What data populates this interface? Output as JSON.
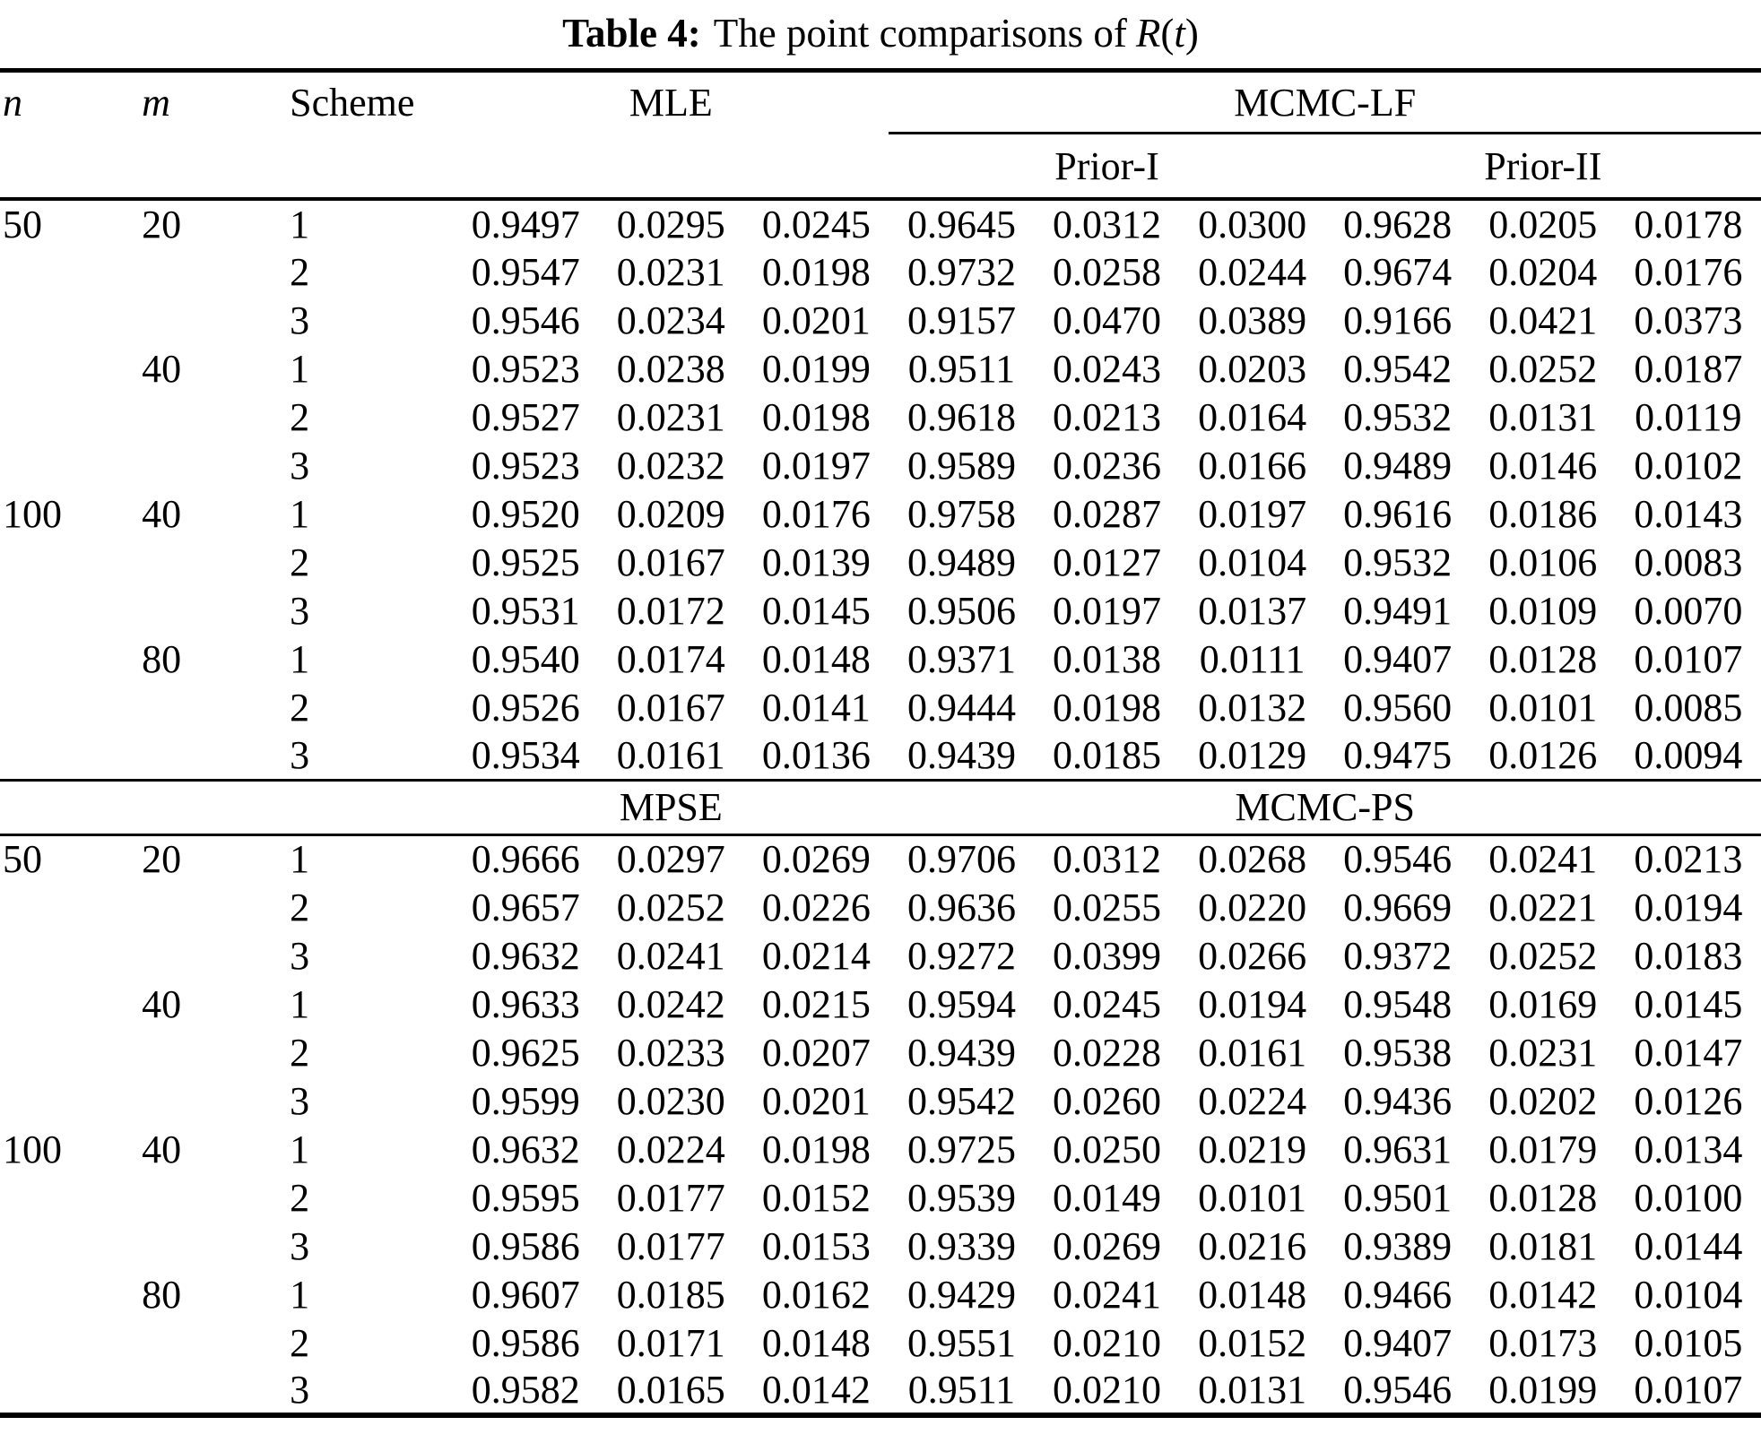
{
  "title": {
    "label": "Table 4:",
    "text": "The point comparisons of",
    "r": "R",
    "open": "(",
    "t": "t",
    "close": ")"
  },
  "colors": {
    "text": "#000000",
    "background": "#ffffff"
  },
  "columns": {
    "n": "n",
    "m": "m",
    "scheme": "Scheme"
  },
  "sections": [
    {
      "left": "MLE",
      "right": "MCMC-LF",
      "priors": [
        "Prior-I",
        "Prior-II"
      ],
      "rows": [
        {
          "n": "50",
          "m": "20",
          "scheme": "1",
          "values": [
            "0.9497",
            "0.0295",
            "0.0245",
            "0.9645",
            "0.0312",
            "0.0300",
            "0.9628",
            "0.0205",
            "0.0178"
          ]
        },
        {
          "n": "",
          "m": "",
          "scheme": "2",
          "values": [
            "0.9547",
            "0.0231",
            "0.0198",
            "0.9732",
            "0.0258",
            "0.0244",
            "0.9674",
            "0.0204",
            "0.0176"
          ]
        },
        {
          "n": "",
          "m": "",
          "scheme": "3",
          "values": [
            "0.9546",
            "0.0234",
            "0.0201",
            "0.9157",
            "0.0470",
            "0.0389",
            "0.9166",
            "0.0421",
            "0.0373"
          ]
        },
        {
          "n": "",
          "m": "40",
          "scheme": "1",
          "values": [
            "0.9523",
            "0.0238",
            "0.0199",
            "0.9511",
            "0.0243",
            "0.0203",
            "0.9542",
            "0.0252",
            "0.0187"
          ]
        },
        {
          "n": "",
          "m": "",
          "scheme": "2",
          "values": [
            "0.9527",
            "0.0231",
            "0.0198",
            "0.9618",
            "0.0213",
            "0.0164",
            "0.9532",
            "0.0131",
            "0.0119"
          ]
        },
        {
          "n": "",
          "m": "",
          "scheme": "3",
          "values": [
            "0.9523",
            "0.0232",
            "0.0197",
            "0.9589",
            "0.0236",
            "0.0166",
            "0.9489",
            "0.0146",
            "0.0102"
          ]
        },
        {
          "n": "100",
          "m": "40",
          "scheme": "1",
          "values": [
            "0.9520",
            "0.0209",
            "0.0176",
            "0.9758",
            "0.0287",
            "0.0197",
            "0.9616",
            "0.0186",
            "0.0143"
          ]
        },
        {
          "n": "",
          "m": "",
          "scheme": "2",
          "values": [
            "0.9525",
            "0.0167",
            "0.0139",
            "0.9489",
            "0.0127",
            "0.0104",
            "0.9532",
            "0.0106",
            "0.0083"
          ]
        },
        {
          "n": "",
          "m": "",
          "scheme": "3",
          "values": [
            "0.9531",
            "0.0172",
            "0.0145",
            "0.9506",
            "0.0197",
            "0.0137",
            "0.9491",
            "0.0109",
            "0.0070"
          ]
        },
        {
          "n": "",
          "m": "80",
          "scheme": "1",
          "values": [
            "0.9540",
            "0.0174",
            "0.0148",
            "0.9371",
            "0.0138",
            "0.0111",
            "0.9407",
            "0.0128",
            "0.0107"
          ]
        },
        {
          "n": "",
          "m": "",
          "scheme": "2",
          "values": [
            "0.9526",
            "0.0167",
            "0.0141",
            "0.9444",
            "0.0198",
            "0.0132",
            "0.9560",
            "0.0101",
            "0.0085"
          ]
        },
        {
          "n": "",
          "m": "",
          "scheme": "3",
          "values": [
            "0.9534",
            "0.0161",
            "0.0136",
            "0.9439",
            "0.0185",
            "0.0129",
            "0.9475",
            "0.0126",
            "0.0094"
          ]
        }
      ]
    },
    {
      "left": "MPSE",
      "right": "MCMC-PS",
      "rows": [
        {
          "n": "50",
          "m": "20",
          "scheme": "1",
          "values": [
            "0.9666",
            "0.0297",
            "0.0269",
            "0.9706",
            "0.0312",
            "0.0268",
            "0.9546",
            "0.0241",
            "0.0213"
          ]
        },
        {
          "n": "",
          "m": "",
          "scheme": "2",
          "values": [
            "0.9657",
            "0.0252",
            "0.0226",
            "0.9636",
            "0.0255",
            "0.0220",
            "0.9669",
            "0.0221",
            "0.0194"
          ]
        },
        {
          "n": "",
          "m": "",
          "scheme": "3",
          "values": [
            "0.9632",
            "0.0241",
            "0.0214",
            "0.9272",
            "0.0399",
            "0.0266",
            "0.9372",
            "0.0252",
            "0.0183"
          ]
        },
        {
          "n": "",
          "m": "40",
          "scheme": "1",
          "values": [
            "0.9633",
            "0.0242",
            "0.0215",
            "0.9594",
            "0.0245",
            "0.0194",
            "0.9548",
            "0.0169",
            "0.0145"
          ]
        },
        {
          "n": "",
          "m": "",
          "scheme": "2",
          "values": [
            "0.9625",
            "0.0233",
            "0.0207",
            "0.9439",
            "0.0228",
            "0.0161",
            "0.9538",
            "0.0231",
            "0.0147"
          ]
        },
        {
          "n": "",
          "m": "",
          "scheme": "3",
          "values": [
            "0.9599",
            "0.0230",
            "0.0201",
            "0.9542",
            "0.0260",
            "0.0224",
            "0.9436",
            "0.0202",
            "0.0126"
          ]
        },
        {
          "n": "100",
          "m": "40",
          "scheme": "1",
          "values": [
            "0.9632",
            "0.0224",
            "0.0198",
            "0.9725",
            "0.0250",
            "0.0219",
            "0.9631",
            "0.0179",
            "0.0134"
          ]
        },
        {
          "n": "",
          "m": "",
          "scheme": "2",
          "values": [
            "0.9595",
            "0.0177",
            "0.0152",
            "0.9539",
            "0.0149",
            "0.0101",
            "0.9501",
            "0.0128",
            "0.0100"
          ]
        },
        {
          "n": "",
          "m": "",
          "scheme": "3",
          "values": [
            "0.9586",
            "0.0177",
            "0.0153",
            "0.9339",
            "0.0269",
            "0.0216",
            "0.9389",
            "0.0181",
            "0.0144"
          ]
        },
        {
          "n": "",
          "m": "80",
          "scheme": "1",
          "values": [
            "0.9607",
            "0.0185",
            "0.0162",
            "0.9429",
            "0.0241",
            "0.0148",
            "0.9466",
            "0.0142",
            "0.0104"
          ]
        },
        {
          "n": "",
          "m": "",
          "scheme": "2",
          "values": [
            "0.9586",
            "0.0171",
            "0.0148",
            "0.9551",
            "0.0210",
            "0.0152",
            "0.9407",
            "0.0173",
            "0.0105"
          ]
        },
        {
          "n": "",
          "m": "",
          "scheme": "3",
          "values": [
            "0.9582",
            "0.0165",
            "0.0142",
            "0.9511",
            "0.0210",
            "0.0131",
            "0.9546",
            "0.0199",
            "0.0107"
          ]
        }
      ]
    }
  ]
}
